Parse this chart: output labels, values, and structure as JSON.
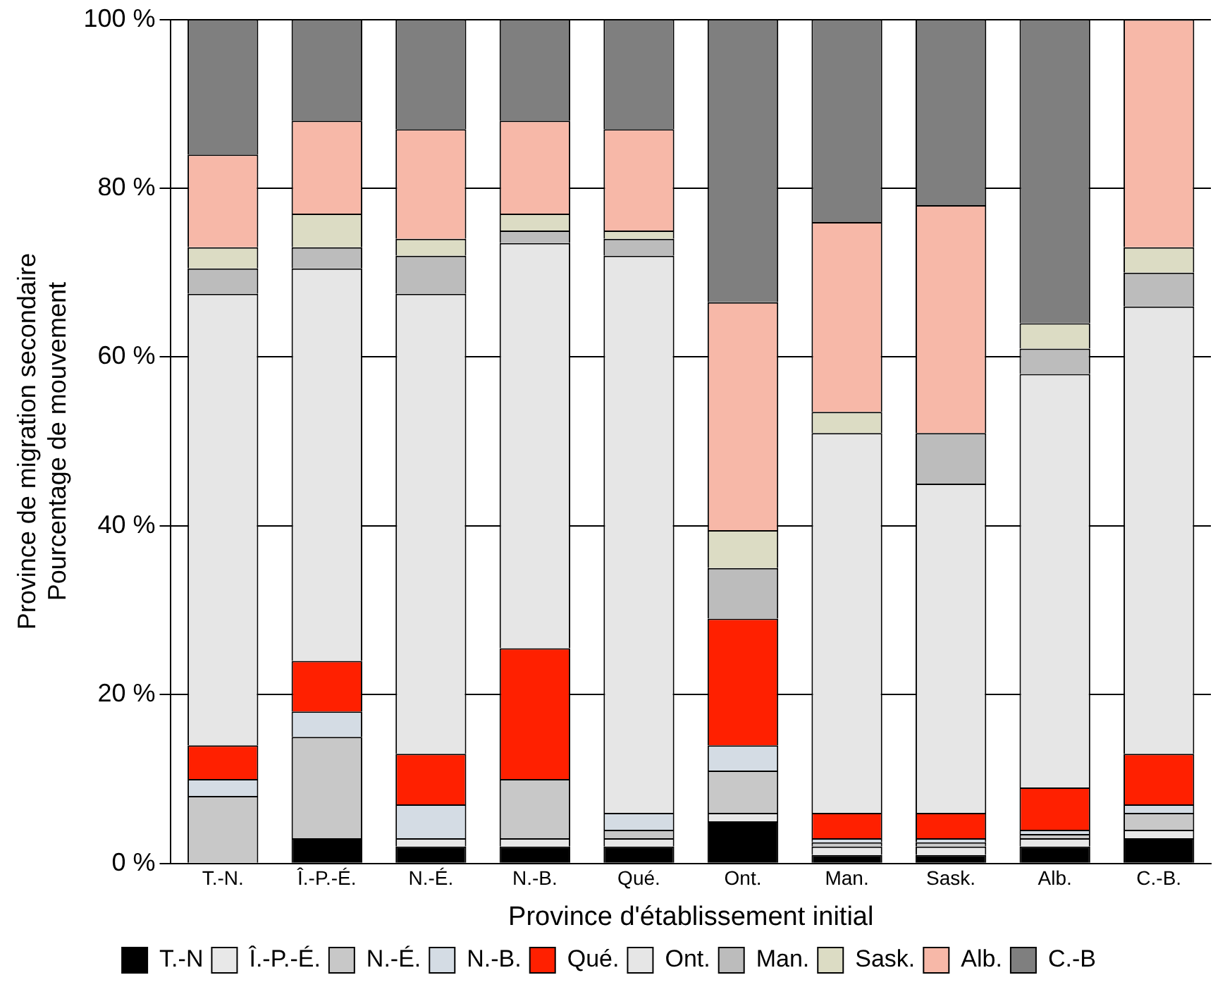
{
  "chart_data": {
    "type": "bar",
    "stacked": true,
    "categories": [
      "T.-N.",
      "Î.-P.-É.",
      "N.-É.",
      "N.-B.",
      "Qué.",
      "Ont.",
      "Man.",
      "Sask.",
      "Alb.",
      "C.-B."
    ],
    "xlabel": "Province d'établissement initial",
    "ylabel": "Province de migration secondaire\nPourcentage de mouvement",
    "ylim": [
      0,
      100
    ],
    "yticks": [
      {
        "value": 0,
        "label": "0 %"
      },
      {
        "value": 20,
        "label": "20 %"
      },
      {
        "value": 40,
        "label": "40 %"
      },
      {
        "value": 60,
        "label": "60 %"
      },
      {
        "value": 80,
        "label": "80 %"
      },
      {
        "value": 100,
        "label": "100 %"
      }
    ],
    "grid": "y",
    "legend": "bottom",
    "series": [
      {
        "name": "T.-N",
        "color": "#000000",
        "values": [
          0,
          3,
          2,
          2,
          2,
          5,
          1,
          1,
          2,
          3
        ]
      },
      {
        "name": "Î.-P.-É.",
        "color": "#e8e8e8",
        "values": [
          0,
          0,
          1,
          1,
          1,
          1,
          1,
          1,
          1,
          1
        ]
      },
      {
        "name": "N.-É.",
        "color": "#c8c8c8",
        "values": [
          8,
          12,
          0,
          7,
          1,
          5,
          0.5,
          0.5,
          0.5,
          2
        ]
      },
      {
        "name": "N.-B.",
        "color": "#d4dce4",
        "values": [
          2,
          3,
          4,
          0,
          2,
          3,
          0.5,
          0.5,
          0.5,
          1
        ]
      },
      {
        "name": "Qué.",
        "color": "#ff2000",
        "values": [
          4,
          6,
          6,
          15.5,
          0,
          15,
          3,
          3,
          5,
          6
        ]
      },
      {
        "name": "Ont.",
        "color": "#e6e6e6",
        "values": [
          53.5,
          46.5,
          54.5,
          48,
          66,
          0,
          45,
          39,
          49,
          53
        ]
      },
      {
        "name": "Man.",
        "color": "#bcbcbc",
        "values": [
          3,
          2.5,
          4.5,
          1.5,
          2,
          6,
          0,
          6,
          3,
          4
        ]
      },
      {
        "name": "Sask.",
        "color": "#dcdcc4",
        "values": [
          2.5,
          4,
          2,
          2,
          1,
          4.5,
          2.5,
          0,
          3,
          3
        ]
      },
      {
        "name": "Alb.",
        "color": "#f7b8a8",
        "values": [
          11,
          11,
          13,
          11,
          12,
          27,
          22.5,
          27,
          0,
          27
        ]
      },
      {
        "name": "C.-B",
        "color": "#7f7f7f",
        "values": [
          16,
          12,
          13,
          12,
          13,
          33.5,
          24,
          22,
          36,
          0
        ]
      }
    ]
  }
}
